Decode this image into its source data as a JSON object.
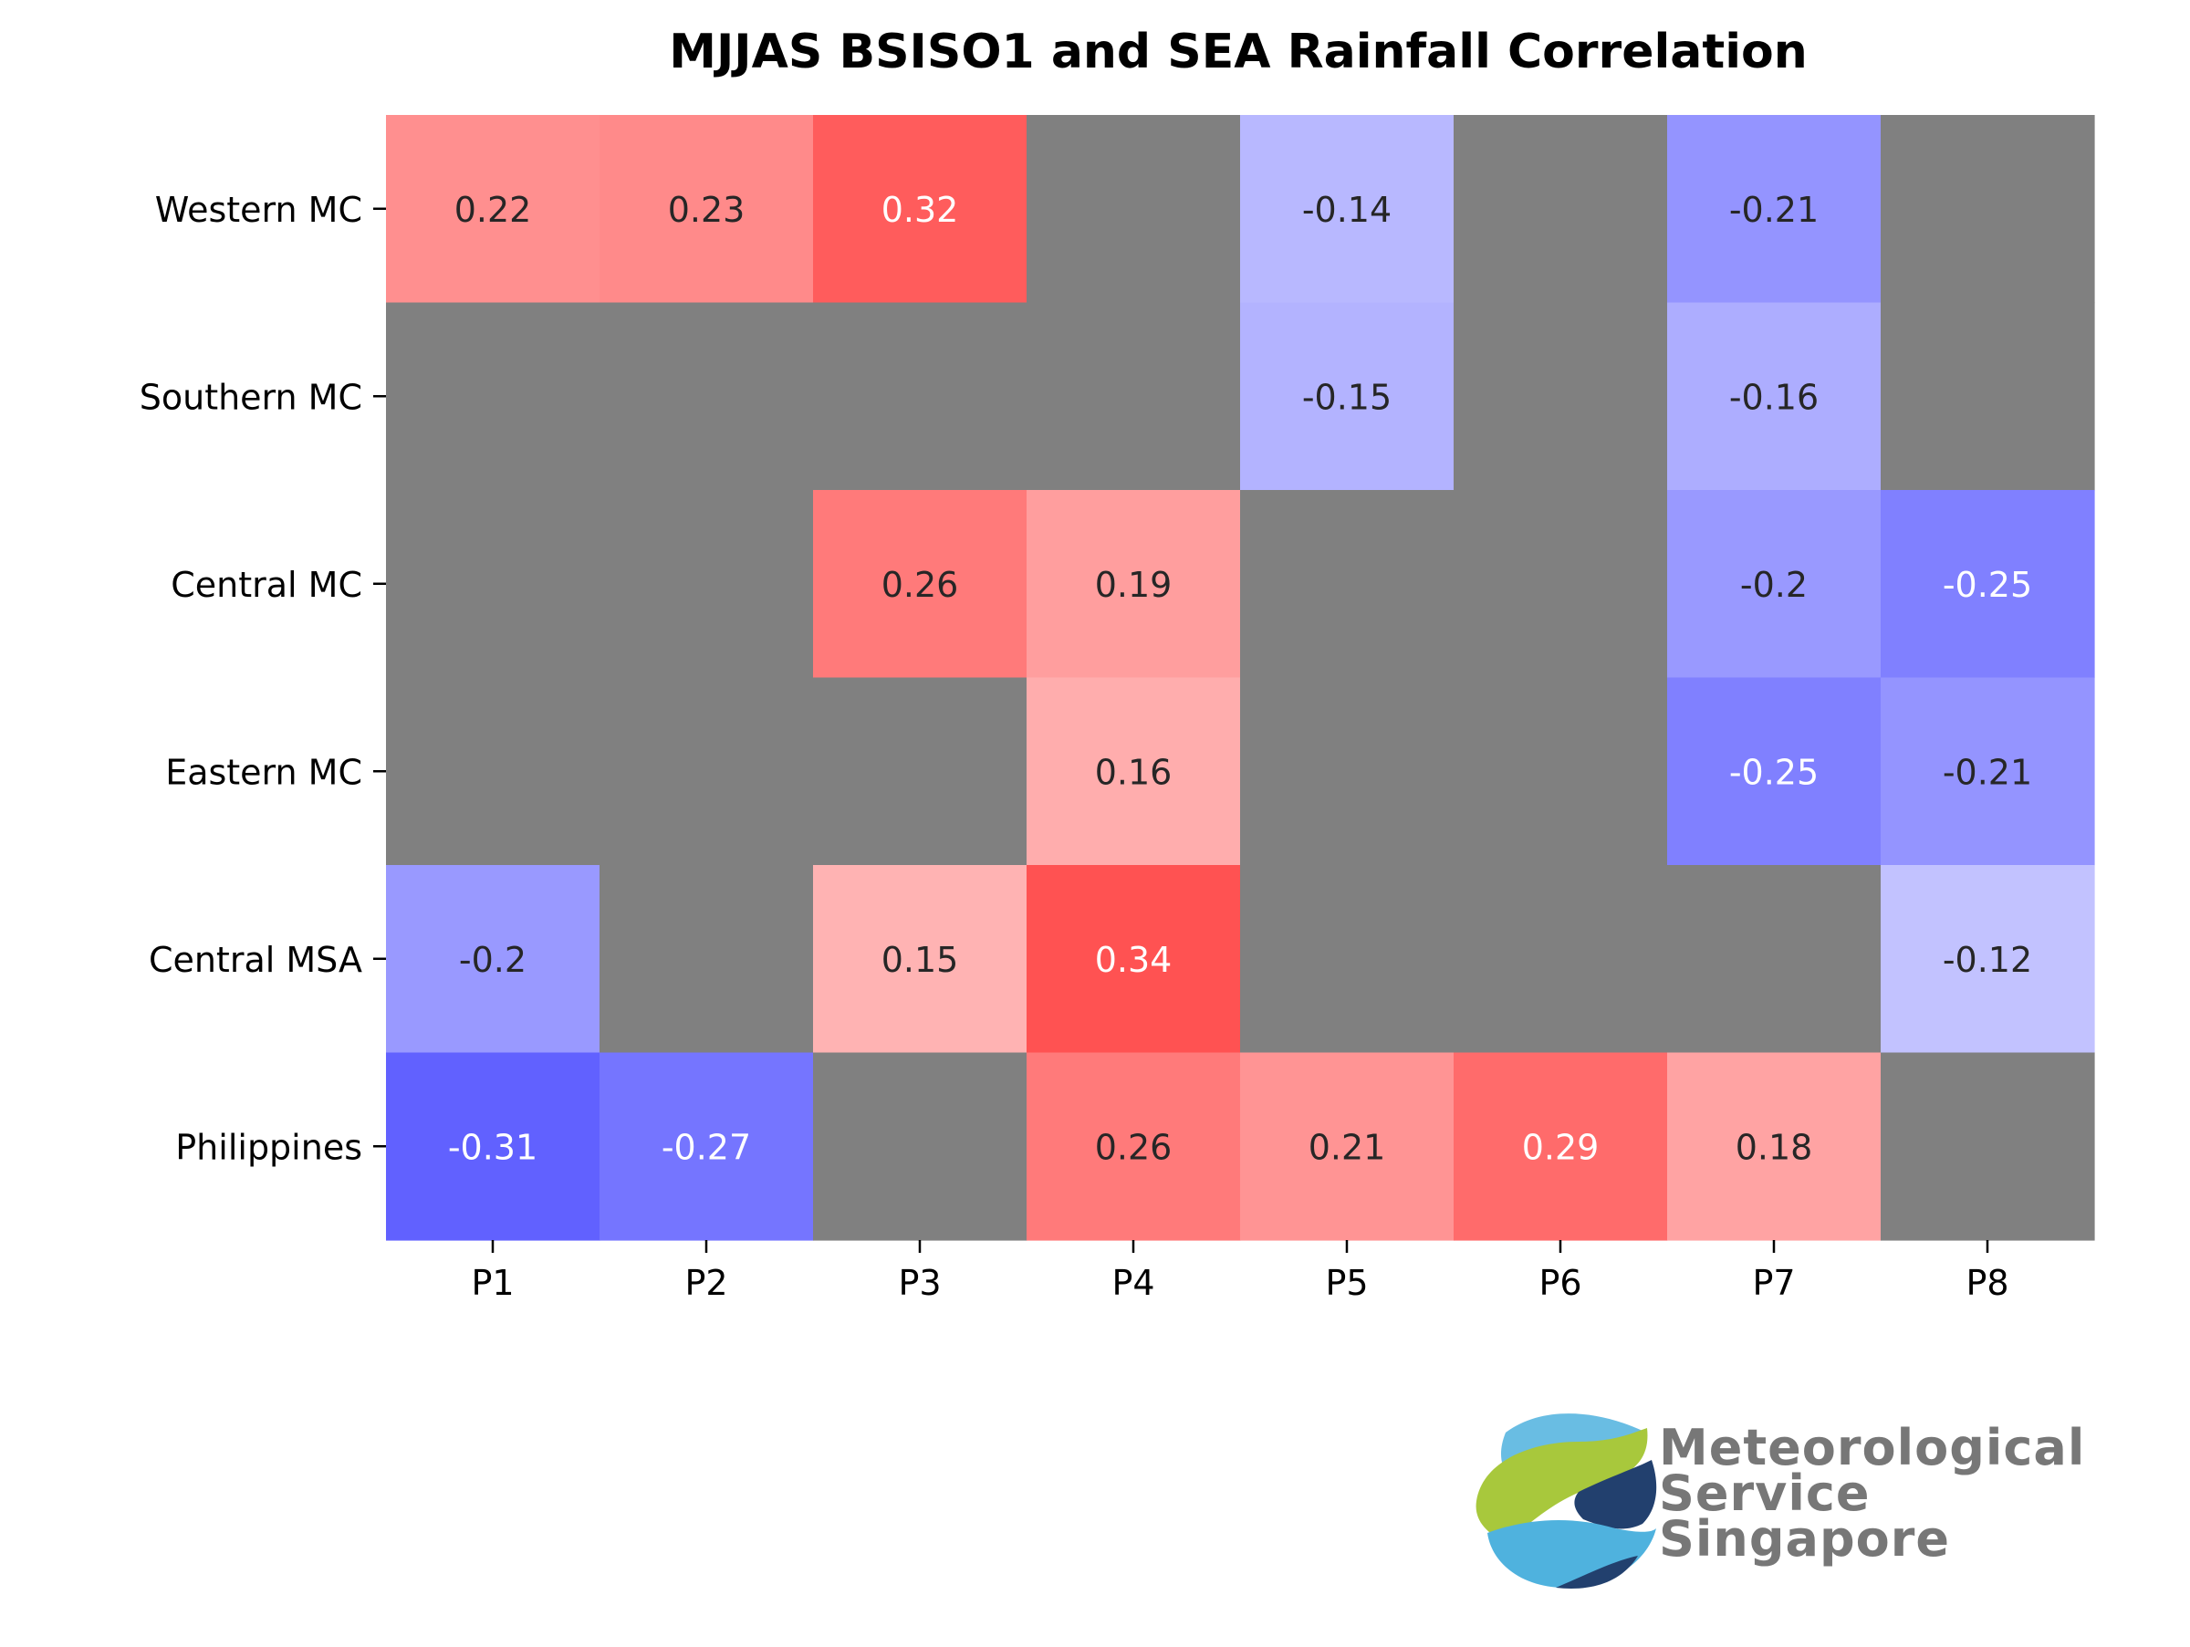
{
  "chart_data": {
    "type": "heatmap",
    "title": "MJJAS BSISO1 and SEA Rainfall Correlation",
    "xlabel": "",
    "ylabel": "",
    "x_categories": [
      "P1",
      "P2",
      "P3",
      "P4",
      "P5",
      "P6",
      "P7",
      "P8"
    ],
    "y_categories": [
      "Western MC",
      "Southern MC",
      "Central MC",
      "Eastern MC",
      "Central MSA",
      "Philippines"
    ],
    "values": [
      [
        0.22,
        0.23,
        0.32,
        null,
        -0.14,
        null,
        -0.21,
        null
      ],
      [
        null,
        null,
        null,
        null,
        -0.15,
        null,
        -0.16,
        null
      ],
      [
        null,
        null,
        0.26,
        0.19,
        null,
        null,
        -0.2,
        -0.25
      ],
      [
        null,
        null,
        null,
        0.16,
        null,
        null,
        -0.25,
        -0.21
      ],
      [
        -0.2,
        null,
        0.15,
        0.34,
        null,
        null,
        null,
        -0.12
      ],
      [
        -0.31,
        -0.27,
        null,
        0.26,
        0.21,
        0.29,
        0.18,
        null
      ]
    ],
    "value_labels": [
      [
        "0.22",
        "0.23",
        "0.32",
        "",
        "-0.14",
        "",
        "-0.21",
        ""
      ],
      [
        "",
        "",
        "",
        "",
        "-0.15",
        "",
        "-0.16",
        ""
      ],
      [
        "",
        "",
        "0.26",
        "0.19",
        "",
        "",
        "-0.2",
        "-0.25"
      ],
      [
        "",
        "",
        "",
        "0.16",
        "",
        "",
        "-0.25",
        "-0.21"
      ],
      [
        "-0.2",
        "",
        "0.15",
        "0.34",
        "",
        "",
        "",
        "-0.12"
      ],
      [
        "-0.31",
        "-0.27",
        "",
        "0.26",
        "0.21",
        "0.29",
        "0.18",
        ""
      ]
    ],
    "value_range": [
      -0.5,
      0.5
    ],
    "colormap": "bwr",
    "missing_color": "#808080",
    "grid": false,
    "legend": "none"
  },
  "logo": {
    "text_lines": [
      "Meteorological",
      "Service",
      "Singapore"
    ],
    "colors": {
      "green": "#a8c83c",
      "navy": "#22406e",
      "cyan": "#4fb2de",
      "text": "#777777"
    }
  }
}
